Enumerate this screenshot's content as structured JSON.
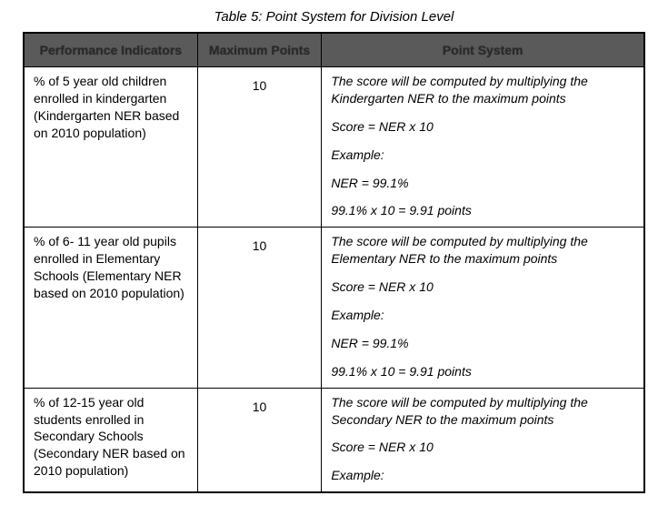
{
  "title": "Table 5: Point System for Division Level",
  "columns": {
    "performance": "Performance Indicators",
    "maximum": "Maximum Points",
    "system": "Point System"
  },
  "rows": [
    {
      "indicator": "% of 5 year old children enrolled in kindergarten (Kindergarten NER based on 2010 population)",
      "max_points": "10",
      "system": {
        "intro": "The score will be computed by multiplying the Kindergarten NER to the maximum points",
        "formula": "Score = NER x 10",
        "example_label": "Example:",
        "example_value": "NER = 99.1%",
        "example_result": "99.1% x 10 = 9.91 points"
      }
    },
    {
      "indicator": "% of 6- 11 year old pupils enrolled in Elementary Schools (Elementary NER based on 2010 population)",
      "max_points": "10",
      "system": {
        "intro": "The score will be computed by multiplying the Elementary NER to the maximum points",
        "formula": "Score = NER x 10",
        "example_label": "Example:",
        "example_value": "NER = 99.1%",
        "example_result": "99.1% x 10 = 9.91 points"
      }
    },
    {
      "indicator": "% of 12-15 year old students enrolled in Secondary Schools (Secondary NER based on 2010 population)",
      "max_points": "10",
      "system": {
        "intro": "The score will be computed by multiplying the Secondary NER to the maximum points",
        "formula": "Score = NER x 10",
        "example_label": "Example:",
        "example_value": "",
        "example_result": ""
      }
    }
  ]
}
